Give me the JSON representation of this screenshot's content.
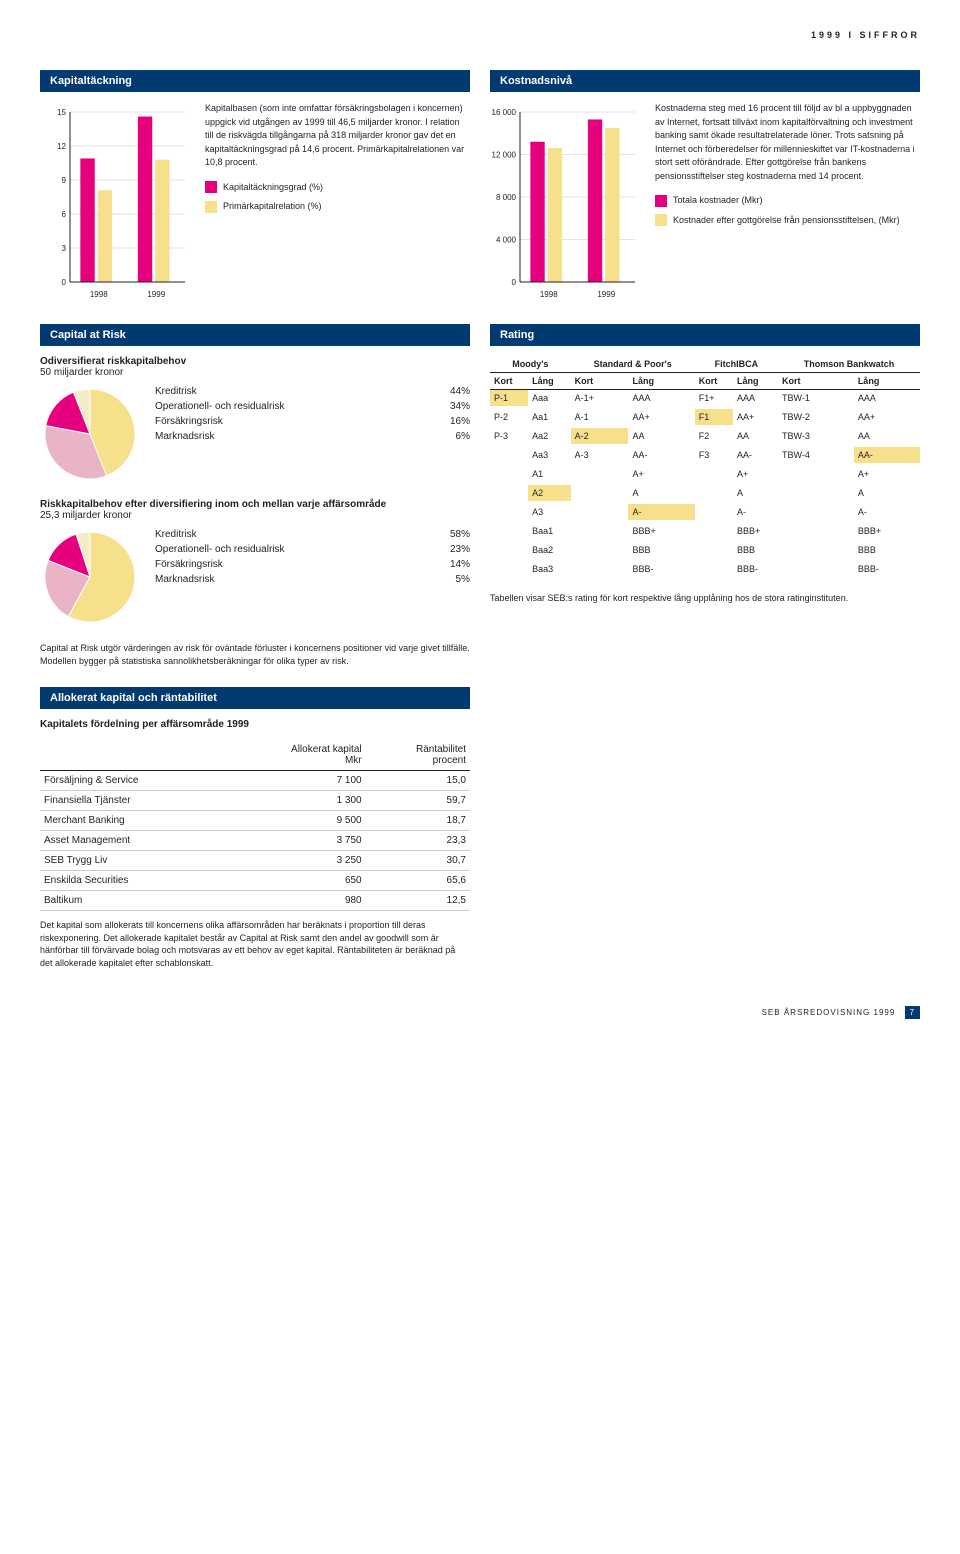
{
  "header": "1999 I SIFFROR",
  "kapital": {
    "title": "Kapitaltäckning",
    "para": "Kapitalbasen (som inte omfattar försäkrings­bolagen i koncernen) uppgick vid utgången av 1999 till 46,5 miljarder kronor. I relation till de riskvägda tillgångarna på 318 miljarder kronor gav det en kapitaltäckningsgrad på 14,6 procent. Primärkapitalrelationen var 10,8 procent.",
    "legend": [
      {
        "color": "#e6007e",
        "label": "Kapitaltäckningsgrad (%)"
      },
      {
        "color": "#f7e08c",
        "label": "Primärkapitalrelation (%)"
      }
    ],
    "chart": {
      "type": "bar",
      "ymax": 15,
      "yticks": [
        0,
        3,
        6,
        9,
        12,
        15
      ],
      "xlabels": [
        "1998",
        "1999"
      ],
      "series": [
        {
          "color": "#e6007e",
          "values": [
            10.9,
            14.6
          ]
        },
        {
          "color": "#f7e08c",
          "values": [
            8.1,
            10.8
          ]
        }
      ],
      "bg": "#ffffff",
      "grid": "#e5e2dc",
      "axis": "#231f20"
    }
  },
  "kostnad": {
    "title": "Kostnadsnivå",
    "para": "Kostnaderna steg med 16 procent till följd av bl a uppbyggnaden av Internet, fortsatt tillväxt inom kapitalförvaltning och investment ban­king samt ökade resultatrelaterade löner. Trots satsning på Internet och förberedelser för millennieskiftet var IT-kostnaderna i stort sett oförändrade. Efter gottgörelse från ban­kens pensionsstiftelser steg kostnaderna med 14 procent.",
    "legend": [
      {
        "color": "#e6007e",
        "label": "Totala kostnader (Mkr)"
      },
      {
        "color": "#f7e08c",
        "label": "Kostnader efter gottgörelse från pensionsstiftelsen, (Mkr)"
      }
    ],
    "chart": {
      "type": "bar",
      "ymax": 16000,
      "yticks": [
        0,
        4000,
        8000,
        12000,
        16000
      ],
      "xlabels": [
        "1998",
        "1999"
      ],
      "series": [
        {
          "color": "#e6007e",
          "values": [
            13200,
            15300
          ]
        },
        {
          "color": "#f7e08c",
          "values": [
            12600,
            14500
          ]
        }
      ],
      "bg": "#ffffff",
      "grid": "#e5e2dc",
      "axis": "#231f20"
    }
  },
  "car": {
    "title": "Capital at Risk",
    "h1": "Odiversifierat riskkapitalbehov",
    "h1sub": "50 miljarder kronor",
    "pie1": {
      "slices": [
        {
          "label": "Kreditrisk",
          "value": 44,
          "pct": "44%",
          "color": "#f7e08c",
          "color2": "#d9a87c"
        },
        {
          "label": "Operationell- och residualrisk",
          "value": 34,
          "pct": "34%",
          "color": "#e9b4c6"
        },
        {
          "label": "Försäkringsrisk",
          "value": 16,
          "pct": "16%",
          "color": "#e6007e"
        },
        {
          "label": "Marknadsrisk",
          "value": 6,
          "pct": "6%",
          "color": "#f4ecc9"
        }
      ]
    },
    "h2": "Riskkapitalbehov efter diversifiering inom och mellan varje affärsområde",
    "h2sub": "25,3 miljarder kronor",
    "pie2": {
      "slices": [
        {
          "label": "Kreditrisk",
          "value": 58,
          "pct": "58%",
          "color": "#f7e08c"
        },
        {
          "label": "Operationell- och residualrisk",
          "value": 23,
          "pct": "23%",
          "color": "#e9b4c6"
        },
        {
          "label": "Försäkringsrisk",
          "value": 14,
          "pct": "14%",
          "color": "#e6007e"
        },
        {
          "label": "Marknadsrisk",
          "value": 5,
          "pct": "5%",
          "color": "#f4ecc9"
        }
      ]
    },
    "note": "Capital at Risk utgör värderingen av risk för oväntade förluster i koncernens positioner vid varje givet tillfälle. Modellen bygger på statistiska sannolikhets­beräkningar för olika typer av risk."
  },
  "rating": {
    "title": "Rating",
    "agencies": [
      "Moody's",
      "Standard & Poor's",
      "FitchIBCA",
      "Thomson Bankwatch"
    ],
    "sublabels": [
      "Kort",
      "Lång",
      "Kort",
      "Lång",
      "Kort",
      "Lång",
      "Kort",
      "Lång"
    ],
    "rows": [
      [
        "P-1",
        "Aaa",
        "A-1+",
        "AAA",
        "F1+",
        "AAA",
        "TBW-1",
        "AAA"
      ],
      [
        "P-2",
        "Aa1",
        "A-1",
        "AA+",
        "F1",
        "AA+",
        "TBW-2",
        "AA+"
      ],
      [
        "P-3",
        "Aa2",
        "A-2",
        "AA",
        "F2",
        "AA",
        "TBW-3",
        "AA"
      ],
      [
        "",
        "Aa3",
        "A-3",
        "AA-",
        "F3",
        "AA-",
        "TBW-4",
        "AA-"
      ],
      [
        "",
        "A1",
        "",
        "A+",
        "",
        "A+",
        "",
        "A+"
      ],
      [
        "",
        "A2",
        "",
        "A",
        "",
        "A",
        "",
        "A"
      ],
      [
        "",
        "A3",
        "",
        "A-",
        "",
        "A-",
        "",
        "A-"
      ],
      [
        "",
        "Baa1",
        "",
        "BBB+",
        "",
        "BBB+",
        "",
        "BBB+"
      ],
      [
        "",
        "Baa2",
        "",
        "BBB",
        "",
        "BBB",
        "",
        "BBB"
      ],
      [
        "",
        "Baa3",
        "",
        "BBB-",
        "",
        "BBB-",
        "",
        "BBB-"
      ]
    ],
    "highlights": {
      "0": [
        0
      ],
      "1": [
        4
      ],
      "2": [
        2
      ],
      "3": [
        7
      ],
      "5": [
        1
      ],
      "6": [
        3
      ]
    },
    "note": "Tabellen visar SEB:s rating för kort respektive lång upplåning hos de stora ratinginstituten."
  },
  "alloc": {
    "title": "Allokerat kapital och räntabilitet",
    "subtitle": "Kapitalets fördelning per affärsområde 1999",
    "cols": [
      "",
      "Allokerat kapital",
      "Räntabilitet"
    ],
    "colsub": [
      "",
      "Mkr",
      "procent"
    ],
    "rows": [
      [
        "Försäljning & Service",
        "7 100",
        "15,0"
      ],
      [
        "Finansiella Tjänster",
        "1 300",
        "59,7"
      ],
      [
        "Merchant Banking",
        "9 500",
        "18,7"
      ],
      [
        "Asset Management",
        "3 750",
        "23,3"
      ],
      [
        "SEB Trygg Liv",
        "3 250",
        "30,7"
      ],
      [
        "Enskilda Securities",
        "650",
        "65,6"
      ],
      [
        "Baltikum",
        "980",
        "12,5"
      ]
    ],
    "note": "Det kapital som allokerats till koncernens olika affärsområden har beräknats i proportion till deras riskexponering. Det allokerade kapitalet består av Capital at Risk samt den andel av goodwill som är hänförbar till förvärvade bolag och motsvaras av ett behov av eget kapital. Räntabiliteten är beräknad på det allo­kerade kapitalet efter schablonskatt."
  },
  "footer": {
    "label": "SEB ÅRSREDOVISNING 1999",
    "page": "7"
  }
}
